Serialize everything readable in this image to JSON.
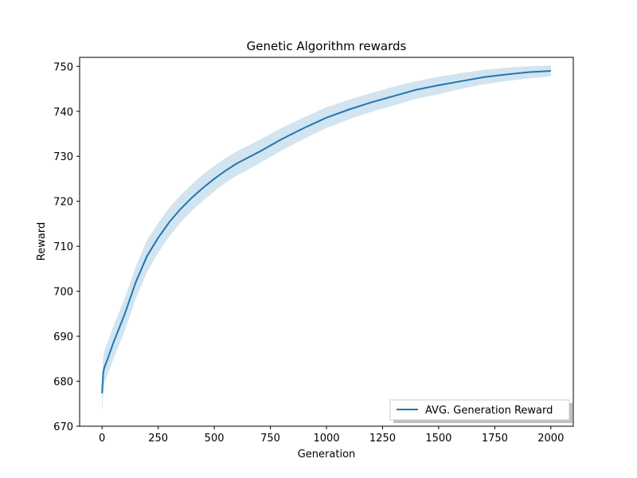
{
  "chart_data": {
    "type": "line",
    "title": "Genetic Algorithm rewards",
    "xlabel": "Generation",
    "ylabel": "Reward",
    "xlim": [
      -100,
      2100
    ],
    "ylim": [
      670,
      752
    ],
    "xticks": [
      0,
      250,
      500,
      750,
      1000,
      1250,
      1500,
      1750,
      2000
    ],
    "yticks": [
      670,
      680,
      690,
      700,
      710,
      720,
      730,
      740,
      750
    ],
    "grid": false,
    "legend_position": "lower-right",
    "series": [
      {
        "name": "AVG. Generation Reward",
        "color": "#1f77b4",
        "band_color": "#1f77b4",
        "x": [
          0,
          5,
          10,
          25,
          50,
          100,
          150,
          200,
          250,
          300,
          350,
          400,
          450,
          500,
          550,
          600,
          700,
          800,
          900,
          1000,
          1100,
          1200,
          1300,
          1400,
          1500,
          1600,
          1700,
          1800,
          1900,
          2000
        ],
        "y": [
          677.3,
          681.8,
          683.0,
          685.0,
          688.5,
          694.8,
          702.0,
          707.8,
          711.9,
          715.4,
          718.3,
          720.8,
          723.0,
          725.0,
          726.8,
          728.4,
          731.0,
          733.8,
          736.3,
          738.6,
          740.4,
          742.0,
          743.4,
          744.8,
          745.8,
          746.7,
          747.6,
          748.2,
          748.7,
          749.0
        ],
        "lower": [
          673.0,
          677.0,
          679.5,
          681.5,
          684.8,
          691.0,
          698.3,
          704.2,
          708.6,
          712.2,
          715.3,
          717.9,
          720.1,
          722.2,
          724.1,
          725.7,
          728.4,
          731.3,
          733.9,
          736.3,
          738.2,
          739.9,
          741.3,
          742.8,
          743.8,
          745.0,
          746.0,
          746.7,
          747.3,
          747.8
        ],
        "upper": [
          681.0,
          685.5,
          686.8,
          688.7,
          692.2,
          698.3,
          705.5,
          711.3,
          715.2,
          718.6,
          721.4,
          723.8,
          726.0,
          727.9,
          729.6,
          731.1,
          733.6,
          736.3,
          738.7,
          740.9,
          742.6,
          744.1,
          745.5,
          746.7,
          747.7,
          748.5,
          749.2,
          749.7,
          750.0,
          750.2
        ]
      }
    ]
  }
}
